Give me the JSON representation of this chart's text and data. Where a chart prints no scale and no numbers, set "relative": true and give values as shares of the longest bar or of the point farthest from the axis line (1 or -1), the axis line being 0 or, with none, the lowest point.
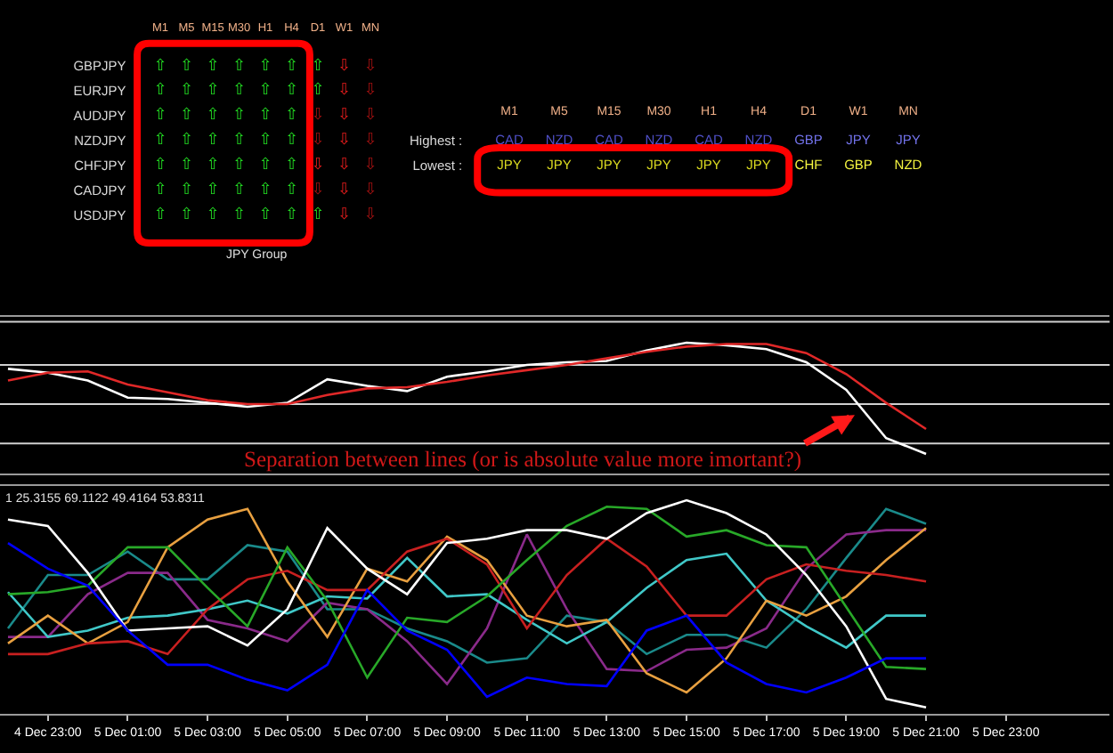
{
  "chart_data": [
    {
      "type": "other",
      "categories": [
        "M1",
        "M5",
        "M15",
        "M30",
        "H1",
        "H4",
        "D1",
        "W1",
        "MN"
      ],
      "y_categories": [
        "GBPJPY",
        "EURJPY",
        "AUDJPY",
        "NZDJPY",
        "CHFJPY",
        "CADJPY",
        "USDJPY"
      ],
      "cell_labels": [
        [
          "⇧",
          "⇧",
          "⇧",
          "⇧",
          "⇧",
          "⇧",
          "⇧",
          "⇩",
          "⇩"
        ],
        [
          "⇧",
          "⇧",
          "⇧",
          "⇧",
          "⇧",
          "⇧",
          "⇧",
          "⇩",
          "⇩"
        ],
        [
          "⇧",
          "⇧",
          "⇧",
          "⇧",
          "⇧",
          "⇧",
          "⇩",
          "⇩",
          "⇩"
        ],
        [
          "⇧",
          "⇧",
          "⇧",
          "⇧",
          "⇧",
          "⇧",
          "⇩",
          "⇩",
          "⇩"
        ],
        [
          "⇧",
          "⇧",
          "⇧",
          "⇧",
          "⇧",
          "⇧",
          "⇩",
          "⇩",
          "⇩"
        ],
        [
          "⇧",
          "⇧",
          "⇧",
          "⇧",
          "⇧",
          "⇧",
          "⇩",
          "⇩",
          "⇩"
        ],
        [
          "⇧",
          "⇧",
          "⇧",
          "⇧",
          "⇧",
          "⇧",
          "⇧",
          "⇩",
          "⇩"
        ]
      ],
      "colors": [
        [
          "#22dd22",
          "#22dd22",
          "#22dd22",
          "#22dd22",
          "#22dd22",
          "#22dd22",
          "#22dd22",
          "#e81c1c",
          "#a01010"
        ],
        [
          "#22dd22",
          "#22dd22",
          "#22dd22",
          "#22dd22",
          "#22dd22",
          "#22dd22",
          "#22dd22",
          "#e81c1c",
          "#a01010"
        ],
        [
          "#22dd22",
          "#22dd22",
          "#22dd22",
          "#22dd22",
          "#22dd22",
          "#22dd22",
          "#a01010",
          "#e81c1c",
          "#a01010"
        ],
        [
          "#22dd22",
          "#22dd22",
          "#22dd22",
          "#22dd22",
          "#22dd22",
          "#22dd22",
          "#a01010",
          "#e81c1c",
          "#a01010"
        ],
        [
          "#22dd22",
          "#22dd22",
          "#22dd22",
          "#22dd22",
          "#22dd22",
          "#22dd22",
          "#e81c1c",
          "#e81c1c",
          "#a01010"
        ],
        [
          "#22dd22",
          "#22dd22",
          "#22dd22",
          "#22dd22",
          "#22dd22",
          "#22dd22",
          "#a01010",
          "#e81c1c",
          "#a01010"
        ],
        [
          "#22dd22",
          "#22dd22",
          "#22dd22",
          "#22dd22",
          "#22dd22",
          "#22dd22",
          "#22dd22",
          "#e81c1c",
          "#a01010"
        ]
      ],
      "annotations": [
        "JPY Group"
      ]
    },
    {
      "type": "other",
      "categories": [
        "M1",
        "M5",
        "M15",
        "M30",
        "H1",
        "H4",
        "D1",
        "W1",
        "MN"
      ],
      "y_categories": [
        "Highest :",
        "Lowest :"
      ],
      "cell_labels": [
        [
          "CAD",
          "NZD",
          "CAD",
          "NZD",
          "CAD",
          "NZD",
          "GBP",
          "JPY",
          "JPY"
        ],
        [
          "JPY",
          "JPY",
          "JPY",
          "JPY",
          "JPY",
          "JPY",
          "CHF",
          "GBP",
          "NZD"
        ]
      ],
      "colors": [
        [
          "#5050c8",
          "#5050c8",
          "#5050c8",
          "#5050c8",
          "#5050c8",
          "#5050c8",
          "#7272ea",
          "#7272ea",
          "#7272ea"
        ],
        [
          "#d8d820",
          "#d8d820",
          "#d8d820",
          "#d8d820",
          "#d8d820",
          "#d8d820",
          "#f4f440",
          "#f4f440",
          "#f4f440"
        ]
      ]
    },
    {
      "type": "line",
      "relative": true,
      "categories": [
        null,
        null,
        null,
        null,
        null,
        null,
        null,
        null,
        null,
        null,
        null,
        null,
        null,
        null,
        null,
        null,
        null,
        null,
        null,
        null,
        null,
        null,
        null,
        null,
        null,
        null,
        null,
        null
      ],
      "series": [
        {
          "color": "#ffffff",
          "values": [
            0.8,
            0.77,
            0.71,
            0.58,
            0.57,
            0.54,
            0.51,
            0.54,
            0.72,
            0.67,
            0.63,
            0.74,
            0.78,
            0.83,
            0.85,
            0.86,
            0.94,
            1.0,
            0.98,
            0.95,
            0.85,
            0.64,
            0.27,
            0.15,
            null,
            null,
            null,
            null
          ]
        },
        {
          "color": "#e02828",
          "values": [
            0.71,
            0.77,
            0.78,
            0.68,
            0.62,
            0.56,
            0.53,
            0.53,
            0.6,
            0.65,
            0.66,
            0.7,
            0.75,
            0.79,
            0.83,
            0.88,
            0.93,
            0.97,
            0.99,
            0.99,
            0.92,
            0.76,
            0.54,
            0.34,
            null,
            null,
            null,
            null
          ]
        }
      ],
      "ref_lines": [
        {
          "axis": "y",
          "value": 1.16,
          "color": "#d0d0d0"
        },
        {
          "axis": "y",
          "value": 0.83,
          "color": "#d0d0d0"
        },
        {
          "axis": "y",
          "value": 0.53,
          "color": "#d0d0d0"
        },
        {
          "axis": "y",
          "value": 0.23,
          "color": "#d0d0d0"
        }
      ],
      "annotations": [
        "Separation between lines (or is absolute value more imortant?)"
      ]
    },
    {
      "type": "line",
      "relative": true,
      "tick_labels": "x",
      "categories": [
        null,
        "4 Dec 23:00",
        null,
        "5 Dec 01:00",
        null,
        "5 Dec 03:00",
        null,
        "5 Dec 05:00",
        null,
        "5 Dec 07:00",
        null,
        "5 Dec 09:00",
        null,
        "5 Dec 11:00",
        null,
        "5 Dec 13:00",
        null,
        "5 Dec 15:00",
        null,
        "5 Dec 17:00",
        null,
        "5 Dec 19:00",
        null,
        "5 Dec 21:00",
        null,
        "5 Dec 23:00",
        null,
        null
      ],
      "series": [
        {
          "color": "#1a8a8a",
          "values": [
            0.4,
            0.65,
            0.65,
            0.76,
            0.63,
            0.63,
            0.79,
            0.76,
            0.49,
            0.49,
            0.4,
            0.34,
            0.24,
            0.26,
            0.46,
            0.43,
            0.28,
            0.37,
            0.37,
            0.31,
            0.49,
            0.73,
            0.96,
            0.89,
            null,
            null,
            null,
            null
          ]
        },
        {
          "color": "#8a2a8a",
          "values": [
            0.36,
            0.36,
            0.56,
            0.66,
            0.66,
            0.44,
            0.4,
            0.34,
            0.52,
            0.49,
            0.34,
            0.14,
            0.4,
            0.84,
            0.49,
            0.21,
            0.2,
            0.3,
            0.31,
            0.4,
            0.68,
            0.84,
            0.86,
            0.86,
            null,
            null,
            null,
            null
          ]
        },
        {
          "color": "#40c8c8",
          "values": [
            0.57,
            0.36,
            0.39,
            0.45,
            0.46,
            0.49,
            0.53,
            0.47,
            0.55,
            0.54,
            0.73,
            0.55,
            0.56,
            0.44,
            0.33,
            0.43,
            0.59,
            0.72,
            0.75,
            0.53,
            0.41,
            0.31,
            0.46,
            0.46,
            null,
            null,
            null,
            null
          ]
        },
        {
          "color": "#e8a040",
          "values": [
            0.33,
            0.46,
            0.33,
            0.43,
            0.78,
            0.91,
            0.96,
            0.62,
            0.36,
            0.68,
            0.62,
            0.83,
            0.72,
            0.46,
            0.41,
            0.44,
            0.19,
            0.1,
            0.26,
            0.53,
            0.46,
            0.55,
            0.72,
            0.87,
            null,
            null,
            null,
            null
          ]
        },
        {
          "color": "#c82020",
          "values": [
            0.28,
            0.28,
            0.33,
            0.34,
            0.28,
            0.49,
            0.63,
            0.67,
            0.58,
            0.58,
            0.76,
            0.82,
            0.7,
            0.4,
            0.65,
            0.82,
            0.69,
            0.46,
            0.46,
            0.63,
            0.7,
            0.67,
            0.65,
            0.62,
            null,
            null,
            null,
            null
          ]
        },
        {
          "color": "#28a828",
          "values": [
            0.56,
            0.57,
            0.6,
            0.78,
            0.78,
            0.59,
            0.41,
            0.78,
            0.53,
            0.17,
            0.45,
            0.43,
            0.55,
            0.72,
            0.88,
            0.97,
            0.96,
            0.83,
            0.86,
            0.79,
            0.78,
            0.5,
            0.22,
            0.21,
            null,
            null,
            null,
            null
          ]
        },
        {
          "color": "#ffffff",
          "values": [
            0.91,
            0.88,
            0.66,
            0.39,
            0.4,
            0.41,
            0.32,
            0.49,
            0.87,
            0.68,
            0.56,
            0.8,
            0.82,
            0.86,
            0.86,
            0.82,
            0.94,
            1.0,
            0.94,
            0.84,
            0.65,
            0.41,
            0.07,
            0.03,
            null,
            null,
            null,
            null
          ]
        },
        {
          "color": "#0000ff",
          "values": [
            0.8,
            0.68,
            0.6,
            0.39,
            0.23,
            0.23,
            0.16,
            0.11,
            0.23,
            0.58,
            0.39,
            0.3,
            0.08,
            0.17,
            0.14,
            0.13,
            0.39,
            0.46,
            0.24,
            0.14,
            0.1,
            0.17,
            0.26,
            0.26,
            null,
            null,
            null,
            null
          ]
        }
      ],
      "annotations": [
        "1 25.3155 69.1122 49.4164 53.8311"
      ]
    }
  ]
}
